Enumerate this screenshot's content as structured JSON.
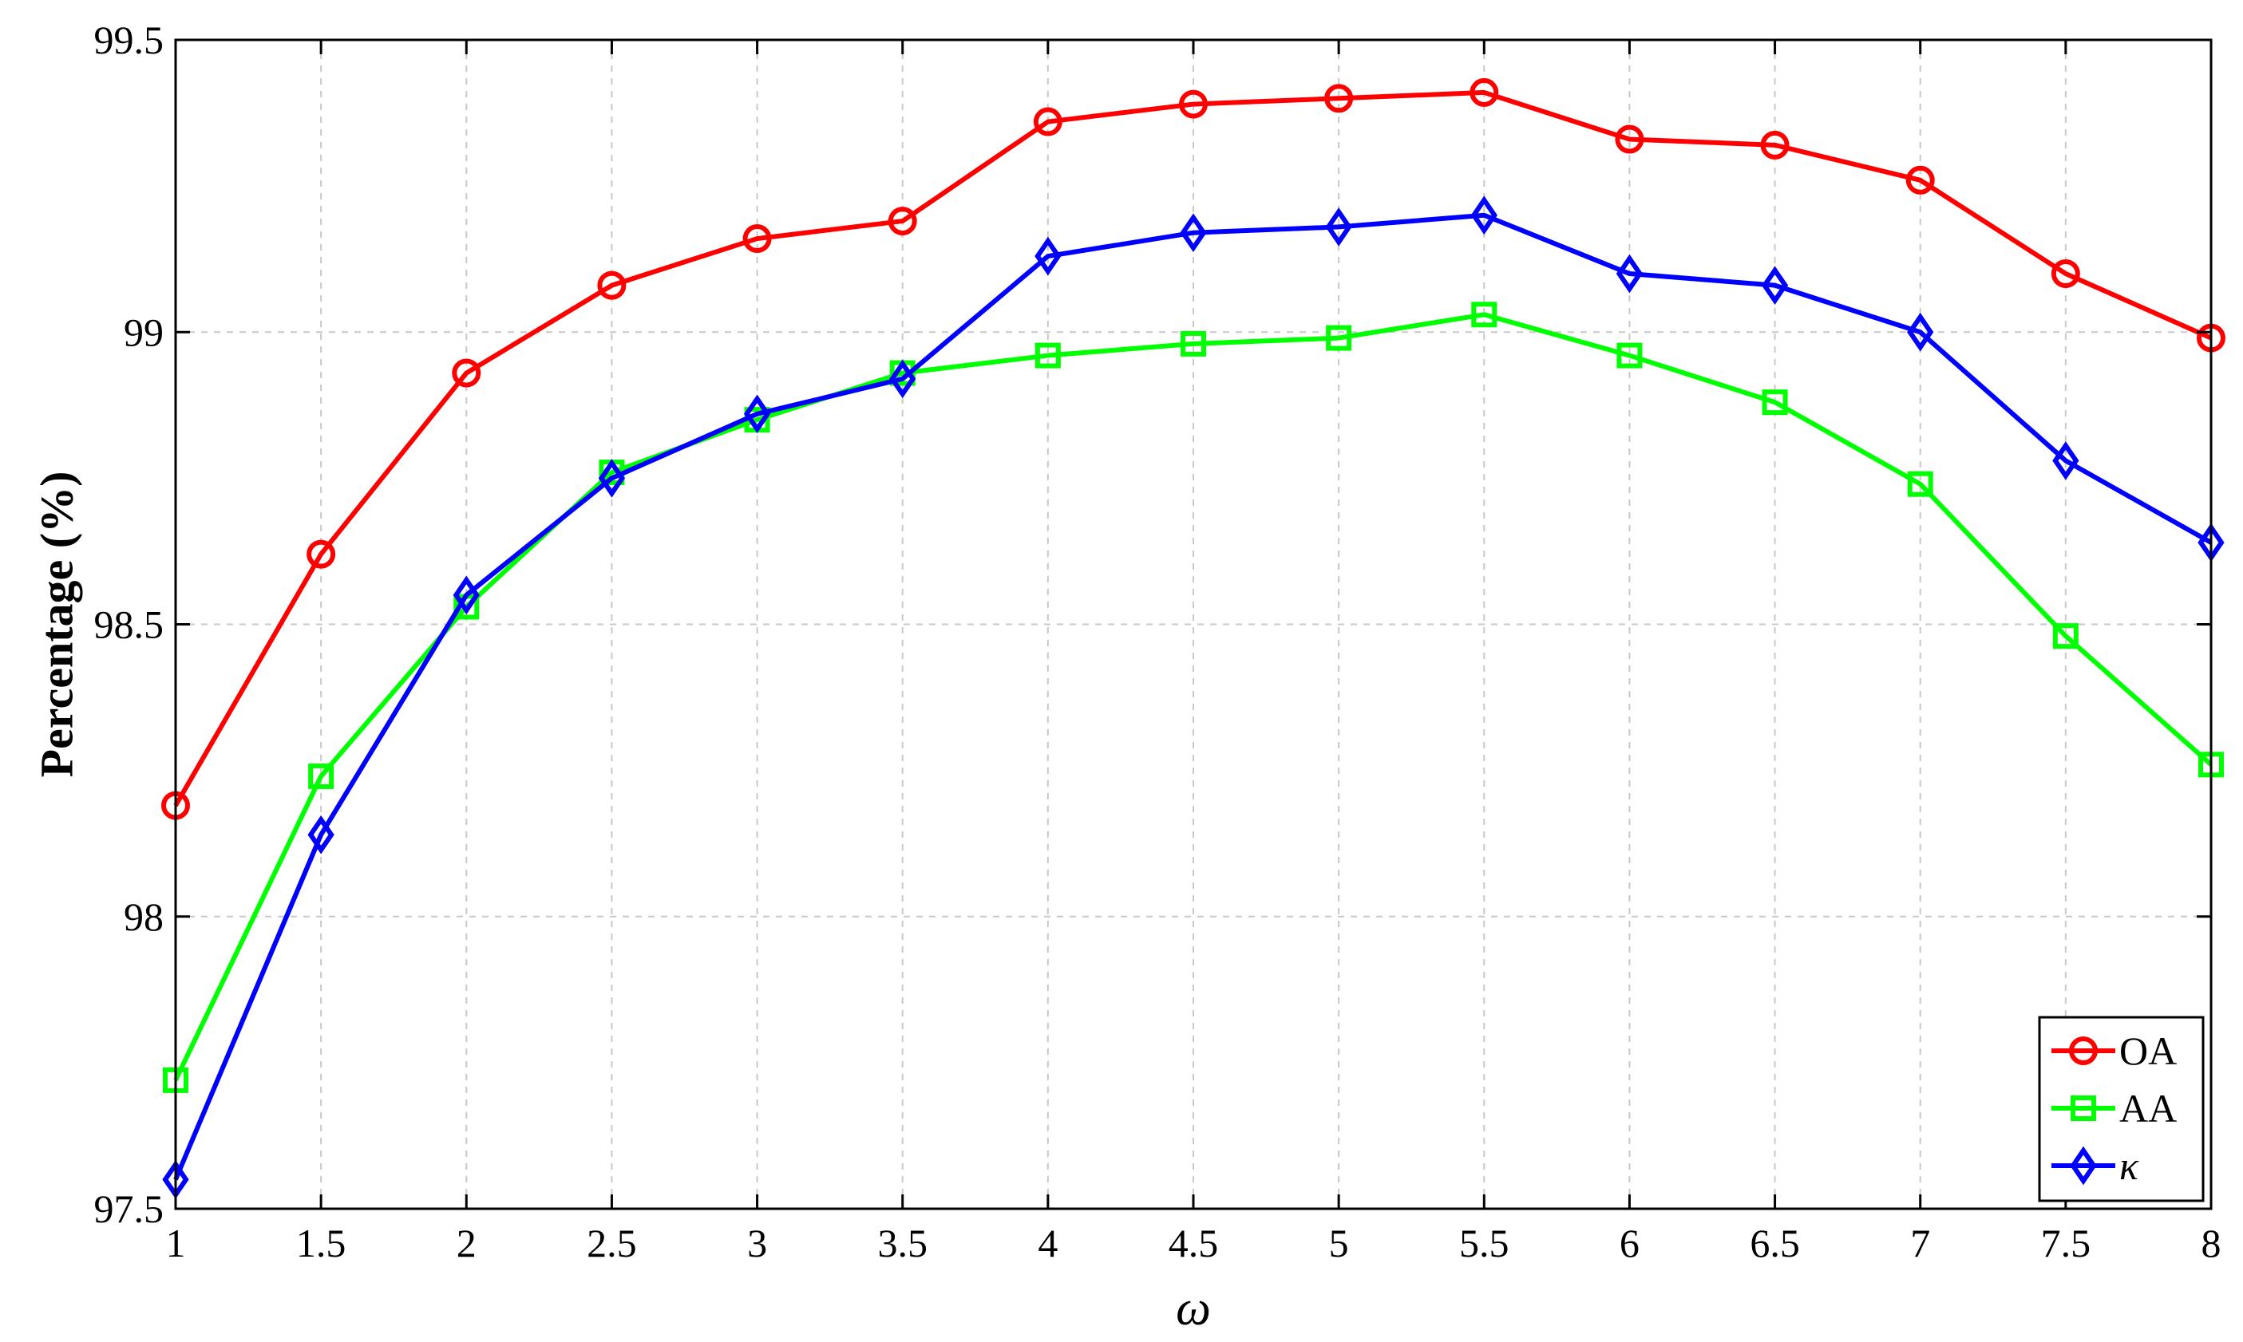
{
  "chart_data": {
    "type": "line",
    "xlabel": "ω",
    "ylabel": "Percentage (%)",
    "xlim": [
      1,
      8
    ],
    "ylim": [
      97.5,
      99.5
    ],
    "x": [
      1,
      1.5,
      2,
      2.5,
      3,
      3.5,
      4,
      4.5,
      5,
      5.5,
      6,
      6.5,
      7,
      7.5,
      8
    ],
    "x_ticks": [
      1,
      1.5,
      2,
      2.5,
      3,
      3.5,
      4,
      4.5,
      5,
      5.5,
      6,
      6.5,
      7,
      7.5,
      8
    ],
    "x_tick_labels": [
      "1",
      "1.5",
      "2",
      "2.5",
      "3",
      "3.5",
      "4",
      "4.5",
      "5",
      "5.5",
      "6",
      "6.5",
      "7",
      "7.5",
      "8"
    ],
    "y_ticks": [
      97.5,
      98,
      98.5,
      99,
      99.5
    ],
    "y_tick_labels": [
      "97.5",
      "98",
      "98.5",
      "99",
      "99.5"
    ],
    "grid": true,
    "legend_position": "bottom-right",
    "series": [
      {
        "name": "OA",
        "color": "#ff0000",
        "marker": "circle",
        "values": [
          98.19,
          98.62,
          98.93,
          99.08,
          99.16,
          99.19,
          99.36,
          99.39,
          99.4,
          99.41,
          99.33,
          99.32,
          99.26,
          99.1,
          98.99
        ]
      },
      {
        "name": "AA",
        "color": "#00ff00",
        "marker": "square",
        "values": [
          97.72,
          98.24,
          98.53,
          98.76,
          98.85,
          98.93,
          98.96,
          98.98,
          98.99,
          99.03,
          98.96,
          98.88,
          98.74,
          98.48,
          98.26
        ]
      },
      {
        "name": "κ",
        "color": "#0000ff",
        "marker": "diamond",
        "values": [
          97.55,
          98.14,
          98.55,
          98.75,
          98.86,
          98.92,
          99.13,
          99.17,
          99.18,
          99.2,
          99.1,
          99.08,
          99.0,
          98.78,
          98.64
        ]
      }
    ]
  }
}
